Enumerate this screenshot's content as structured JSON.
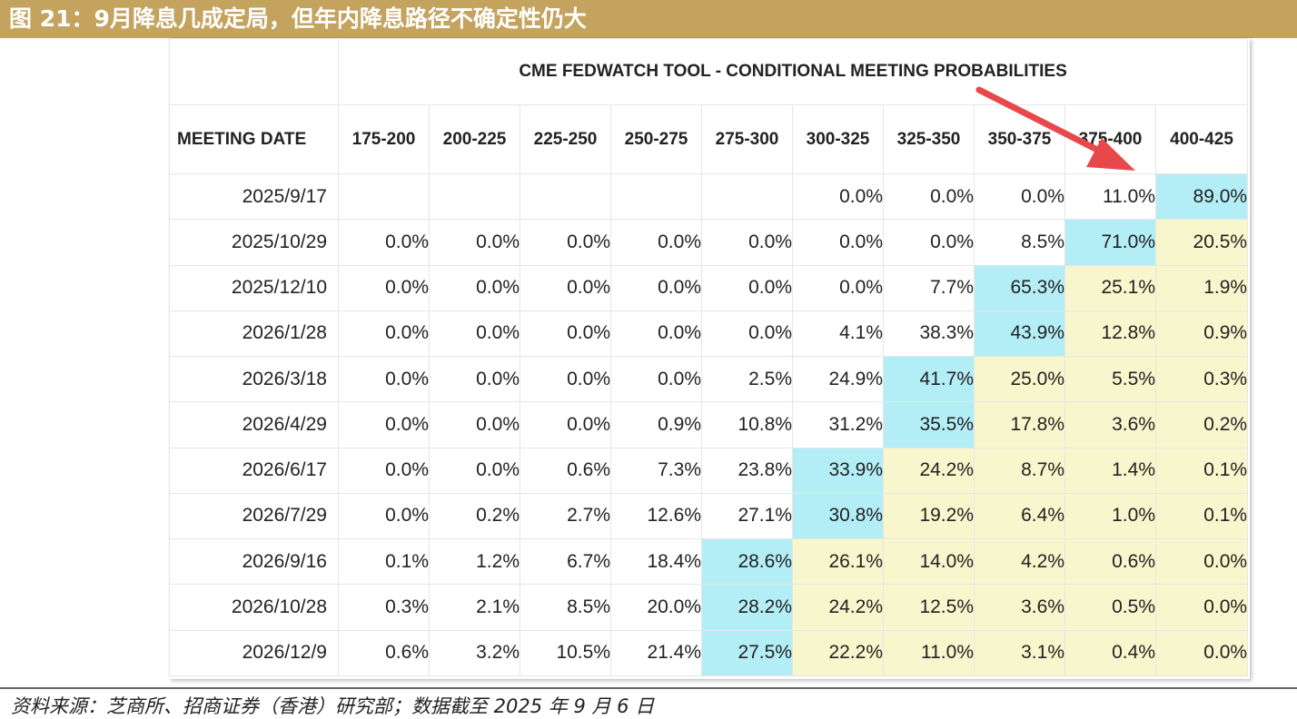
{
  "figure_title": "图 21：9月降息几成定局，但年内降息路径不确定性仍大",
  "source_note": "资料来源：芝商所、招商证券（香港）研究部；数据截至 2025 年 9 月 6 日",
  "colors": {
    "header_bg": "#c3a35e",
    "max_cell": "#b3eef6",
    "after_cell": "#f8f6cc",
    "arrow": "#e8484a"
  },
  "chart_data": {
    "type": "table",
    "title": "CME FEDWATCH TOOL - CONDITIONAL MEETING PROBABILITIES",
    "row_header": "MEETING DATE",
    "columns": [
      "175-200",
      "200-225",
      "225-250",
      "250-275",
      "275-300",
      "300-325",
      "325-350",
      "350-375",
      "375-400",
      "400-425"
    ],
    "rows": [
      {
        "date": "2025/9/17",
        "values": [
          "",
          "",
          "",
          "",
          "",
          "0.0%",
          "0.0%",
          "0.0%",
          "11.0%",
          "89.0%"
        ],
        "max_index": 9
      },
      {
        "date": "2025/10/29",
        "values": [
          "0.0%",
          "0.0%",
          "0.0%",
          "0.0%",
          "0.0%",
          "0.0%",
          "0.0%",
          "8.5%",
          "71.0%",
          "20.5%"
        ],
        "max_index": 8
      },
      {
        "date": "2025/12/10",
        "values": [
          "0.0%",
          "0.0%",
          "0.0%",
          "0.0%",
          "0.0%",
          "0.0%",
          "7.7%",
          "65.3%",
          "25.1%",
          "1.9%"
        ],
        "max_index": 7
      },
      {
        "date": "2026/1/28",
        "values": [
          "0.0%",
          "0.0%",
          "0.0%",
          "0.0%",
          "0.0%",
          "4.1%",
          "38.3%",
          "43.9%",
          "12.8%",
          "0.9%"
        ],
        "max_index": 7
      },
      {
        "date": "2026/3/18",
        "values": [
          "0.0%",
          "0.0%",
          "0.0%",
          "0.0%",
          "2.5%",
          "24.9%",
          "41.7%",
          "25.0%",
          "5.5%",
          "0.3%"
        ],
        "max_index": 6
      },
      {
        "date": "2026/4/29",
        "values": [
          "0.0%",
          "0.0%",
          "0.0%",
          "0.9%",
          "10.8%",
          "31.2%",
          "35.5%",
          "17.8%",
          "3.6%",
          "0.2%"
        ],
        "max_index": 6
      },
      {
        "date": "2026/6/17",
        "values": [
          "0.0%",
          "0.0%",
          "0.6%",
          "7.3%",
          "23.8%",
          "33.9%",
          "24.2%",
          "8.7%",
          "1.4%",
          "0.1%"
        ],
        "max_index": 5
      },
      {
        "date": "2026/7/29",
        "values": [
          "0.0%",
          "0.2%",
          "2.7%",
          "12.6%",
          "27.1%",
          "30.8%",
          "19.2%",
          "6.4%",
          "1.0%",
          "0.1%"
        ],
        "max_index": 5
      },
      {
        "date": "2026/9/16",
        "values": [
          "0.1%",
          "1.2%",
          "6.7%",
          "18.4%",
          "28.6%",
          "26.1%",
          "14.0%",
          "4.2%",
          "0.6%",
          "0.0%"
        ],
        "max_index": 4
      },
      {
        "date": "2026/10/28",
        "values": [
          "0.3%",
          "2.1%",
          "8.5%",
          "20.0%",
          "28.2%",
          "24.2%",
          "12.5%",
          "3.6%",
          "0.5%",
          "0.0%"
        ],
        "max_index": 4
      },
      {
        "date": "2026/12/9",
        "values": [
          "0.6%",
          "3.2%",
          "10.5%",
          "21.4%",
          "27.5%",
          "22.2%",
          "11.0%",
          "3.1%",
          "0.4%",
          "0.0%"
        ],
        "max_index": 4
      }
    ]
  }
}
